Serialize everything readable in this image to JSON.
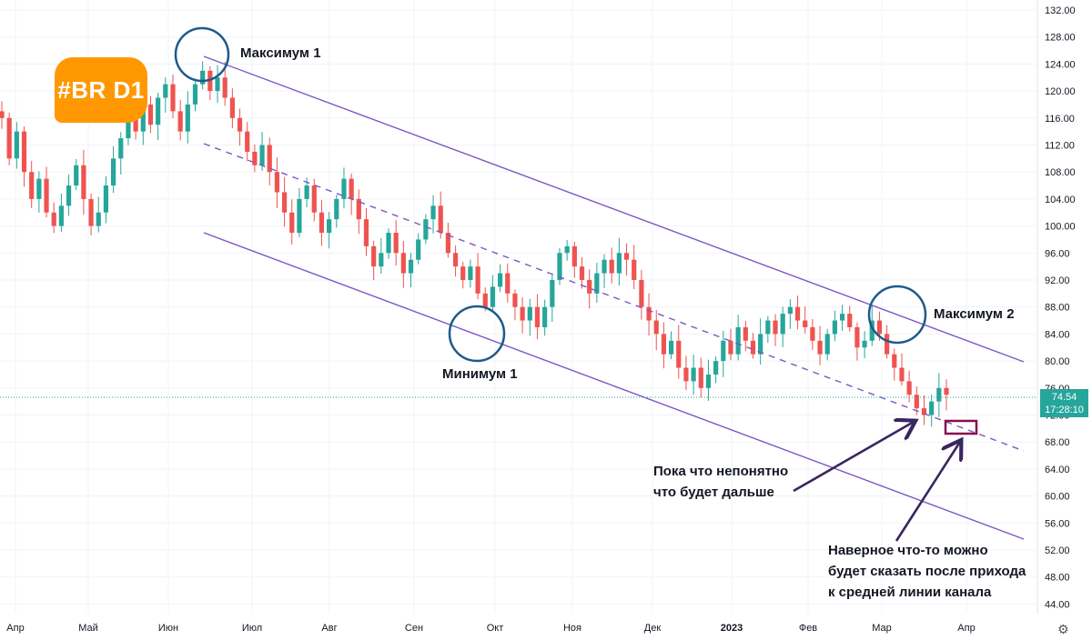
{
  "chart_data": {
    "type": "candlestick",
    "title": "",
    "ticker_label": "#BR D1",
    "y_axis_position": "right",
    "ylim": [
      43,
      133
    ],
    "y_ticks": [
      "132.00",
      "128.00",
      "124.00",
      "120.00",
      "116.00",
      "112.00",
      "108.00",
      "104.00",
      "100.00",
      "96.00",
      "92.00",
      "88.00",
      "84.00",
      "80.00",
      "76.00",
      "72.00",
      "68.00",
      "64.00",
      "60.00",
      "56.00",
      "52.00",
      "48.00",
      "44.00"
    ],
    "x_ticks": [
      "Апр",
      "Май",
      "Июн",
      "Июл",
      "Авг",
      "Сен",
      "Окт",
      "Ноя",
      "Дек",
      "2023",
      "Фев",
      "Мар",
      "Апр"
    ],
    "bold_x_tick": "2023",
    "current_price": "74.54",
    "countdown": "17:28:10",
    "colors": {
      "up": "#26a69a",
      "down": "#ef5350",
      "channel": "#7e57c2",
      "circle": "#1e5a8c",
      "arrow": "#3a2560",
      "target_box": "#880e4f",
      "badge": "#ff9800"
    },
    "closes": [
      116,
      110,
      114,
      108,
      104,
      107,
      102,
      100,
      103,
      106,
      109,
      104,
      100,
      102,
      106,
      110,
      113,
      117,
      114,
      118,
      115,
      119,
      121,
      117,
      114,
      118,
      121,
      123,
      120,
      122,
      119,
      116,
      114,
      111,
      109,
      112,
      108,
      105,
      102,
      99,
      104,
      106,
      102,
      99,
      101,
      104,
      107,
      104,
      101,
      97,
      94,
      96,
      99,
      96,
      93,
      95,
      98,
      101,
      103,
      99,
      96,
      94,
      92,
      94,
      90,
      88,
      91,
      93,
      90,
      88,
      86,
      88,
      85,
      88,
      92,
      96,
      97,
      94,
      92,
      90,
      93,
      95,
      93,
      96,
      95,
      92,
      88,
      86,
      84,
      81,
      83,
      79,
      77,
      79,
      76,
      78,
      80,
      83,
      81,
      85,
      83,
      81,
      84,
      86,
      84,
      87,
      88,
      86,
      85,
      83,
      81,
      84,
      86,
      87,
      85,
      82,
      83,
      86,
      84,
      81,
      79,
      77,
      75,
      73,
      72,
      74,
      76,
      75
    ],
    "annotations": {
      "max1": "Максимум 1",
      "max2": "Максимум 2",
      "min1": "Минимум 1",
      "note1_line1": "Пока что непонятно",
      "note1_line2": "что будет дальше",
      "note2_line1": "Наверное что-то можно",
      "note2_line2": "будет сказать после прихода",
      "note2_line3": "к средней линии канала"
    },
    "channel": {
      "upper": {
        "from": [
          "Июн",
          124.5
        ],
        "to": [
          "Апр",
          80
        ]
      },
      "middle": {
        "from": [
          "Июн",
          112
        ],
        "to": [
          "Апр",
          67
        ],
        "style": "dashed"
      },
      "lower": {
        "from": [
          "Июн",
          98.5
        ],
        "to": [
          "Апр",
          53.5
        ]
      }
    }
  }
}
